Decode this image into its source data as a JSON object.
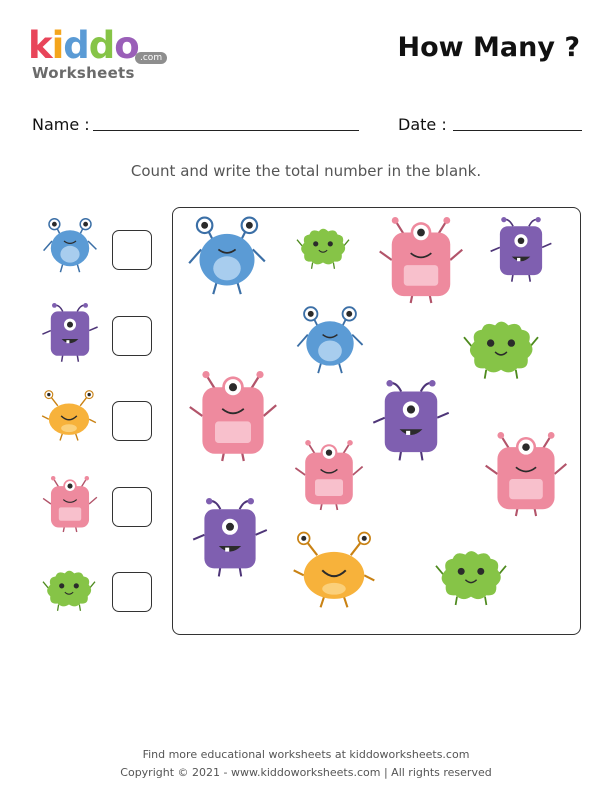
{
  "header": {
    "logo_text": "kiddo",
    "logo_sub": "Worksheets",
    "logo_domain": ".com",
    "title": "How Many ?"
  },
  "fields": {
    "name_label": "Name :",
    "date_label": "Date :"
  },
  "instruction": "Count and write the total number in the blank.",
  "key_monsters": [
    {
      "type": "blue-monster-icon",
      "color": "#5b9bd5"
    },
    {
      "type": "purple-monster-icon",
      "color": "#7f5fb0"
    },
    {
      "type": "orange-monster-icon",
      "color": "#f7b23b"
    },
    {
      "type": "pink-monster-icon",
      "color": "#ee8a9e"
    },
    {
      "type": "green-monster-icon",
      "color": "#86c447"
    }
  ],
  "footer": {
    "line1": "Find more educational worksheets at kiddoworksheets.com",
    "line2": "Copyright © 2021 - www.kiddoworksheets.com  |  All rights reserved"
  },
  "colors": {
    "blue": "#5b9bd5",
    "purple": "#7f5fb0",
    "orange": "#f7b23b",
    "pink": "#ee8a9e",
    "green": "#86c447"
  }
}
